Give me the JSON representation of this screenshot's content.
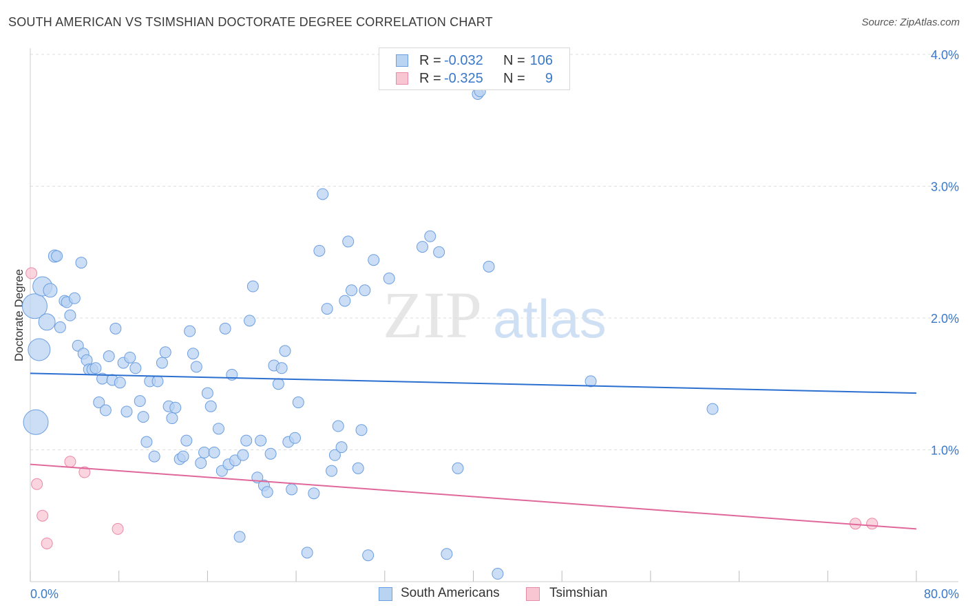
{
  "title": "SOUTH AMERICAN VS TSIMSHIAN DOCTORATE DEGREE CORRELATION CHART",
  "source": "Source: ZipAtlas.com",
  "watermark": {
    "zip": "ZIP",
    "atlas": "atlas"
  },
  "colors": {
    "blue_fill": "#b9d3f2",
    "blue_stroke": "#6b9ee0",
    "blue_line": "#2a6fd0",
    "pink_fill": "#f8c6d3",
    "pink_stroke": "#e98aa6",
    "pink_line": "#e0679a",
    "axis_text": "#3a78c9",
    "grid": "#dddddd"
  },
  "legend_top": {
    "rows": [
      {
        "r_label": "R =",
        "r_value": "-0.032",
        "n_label": "N =",
        "n_value": "106"
      },
      {
        "r_label": "R =",
        "r_value": "-0.325",
        "n_label": "N =",
        "n_value": "9"
      }
    ]
  },
  "legend_bottom": [
    "South Americans",
    "Tsimshian"
  ],
  "chart_data": {
    "type": "scatter",
    "ylabel": "Doctorate Degree",
    "xlabel": "",
    "xlim": [
      0,
      80
    ],
    "ylim": [
      0,
      4.0
    ],
    "x_tick_labels": [
      "0.0%",
      "80.0%"
    ],
    "y_tick_labels": [
      "1.0%",
      "2.0%",
      "3.0%",
      "4.0%"
    ],
    "y_ticks": [
      1.0,
      2.0,
      3.0,
      4.0
    ],
    "grid": true,
    "series": [
      {
        "name": "South Americans",
        "color": "#6b9ee0",
        "points": [
          [
            0.4,
            2.09,
            18
          ],
          [
            0.8,
            1.76,
            16
          ],
          [
            0.5,
            1.21,
            18
          ],
          [
            1.1,
            2.24,
            14
          ],
          [
            1.5,
            1.97,
            12
          ],
          [
            1.8,
            2.21,
            10
          ],
          [
            2.2,
            2.47,
            9
          ],
          [
            2.4,
            2.47,
            8
          ],
          [
            2.7,
            1.93,
            8
          ],
          [
            3.1,
            2.13,
            8
          ],
          [
            3.3,
            2.12,
            8
          ],
          [
            3.6,
            2.02,
            8
          ],
          [
            4.0,
            2.15,
            8
          ],
          [
            4.3,
            1.79,
            8
          ],
          [
            4.6,
            2.42,
            8
          ],
          [
            4.8,
            1.73,
            8
          ],
          [
            5.1,
            1.68,
            8
          ],
          [
            5.3,
            1.61,
            8
          ],
          [
            5.6,
            1.61,
            8
          ],
          [
            5.9,
            1.62,
            8
          ],
          [
            6.2,
            1.36,
            8
          ],
          [
            6.5,
            1.54,
            8
          ],
          [
            6.8,
            1.3,
            8
          ],
          [
            7.1,
            1.71,
            8
          ],
          [
            7.4,
            1.53,
            8
          ],
          [
            7.7,
            1.92,
            8
          ],
          [
            8.1,
            1.51,
            8
          ],
          [
            8.4,
            1.66,
            8
          ],
          [
            8.7,
            1.29,
            8
          ],
          [
            9.0,
            1.7,
            8
          ],
          [
            9.5,
            1.62,
            8
          ],
          [
            9.9,
            1.37,
            8
          ],
          [
            10.2,
            1.25,
            8
          ],
          [
            10.5,
            1.06,
            8
          ],
          [
            10.8,
            1.52,
            8
          ],
          [
            11.2,
            0.95,
            8
          ],
          [
            11.5,
            1.52,
            8
          ],
          [
            11.9,
            1.66,
            8
          ],
          [
            12.2,
            1.74,
            8
          ],
          [
            12.5,
            1.33,
            8
          ],
          [
            12.8,
            1.24,
            8
          ],
          [
            13.1,
            1.32,
            8
          ],
          [
            13.5,
            0.93,
            8
          ],
          [
            13.8,
            0.95,
            8
          ],
          [
            14.1,
            1.07,
            8
          ],
          [
            14.4,
            1.9,
            8
          ],
          [
            14.7,
            1.73,
            8
          ],
          [
            15.0,
            1.63,
            8
          ],
          [
            15.4,
            0.9,
            8
          ],
          [
            15.7,
            0.98,
            8
          ],
          [
            16.0,
            1.43,
            8
          ],
          [
            16.3,
            1.33,
            8
          ],
          [
            16.6,
            0.98,
            8
          ],
          [
            17.0,
            1.16,
            8
          ],
          [
            17.3,
            0.84,
            8
          ],
          [
            17.6,
            1.92,
            8
          ],
          [
            17.9,
            0.89,
            8
          ],
          [
            18.2,
            1.57,
            8
          ],
          [
            18.5,
            0.92,
            8
          ],
          [
            18.9,
            0.34,
            8
          ],
          [
            19.2,
            0.96,
            8
          ],
          [
            19.5,
            1.07,
            8
          ],
          [
            19.8,
            1.98,
            8
          ],
          [
            20.1,
            2.24,
            8
          ],
          [
            20.5,
            0.79,
            8
          ],
          [
            20.8,
            1.07,
            8
          ],
          [
            21.1,
            0.73,
            8
          ],
          [
            21.4,
            0.68,
            8
          ],
          [
            21.7,
            0.97,
            8
          ],
          [
            22.0,
            1.64,
            8
          ],
          [
            22.4,
            1.5,
            8
          ],
          [
            22.7,
            1.62,
            8
          ],
          [
            23.0,
            1.75,
            8
          ],
          [
            23.3,
            1.06,
            8
          ],
          [
            23.6,
            0.7,
            8
          ],
          [
            23.9,
            1.09,
            8
          ],
          [
            24.2,
            1.36,
            8
          ],
          [
            25.0,
            0.22,
            8
          ],
          [
            25.6,
            0.67,
            8
          ],
          [
            26.1,
            2.51,
            8
          ],
          [
            26.4,
            2.94,
            8
          ],
          [
            26.8,
            2.07,
            8
          ],
          [
            27.2,
            0.84,
            8
          ],
          [
            27.5,
            0.96,
            8
          ],
          [
            27.8,
            1.18,
            8
          ],
          [
            28.1,
            1.02,
            8
          ],
          [
            28.4,
            2.13,
            8
          ],
          [
            28.7,
            2.58,
            8
          ],
          [
            29.0,
            2.21,
            8
          ],
          [
            29.6,
            0.86,
            8
          ],
          [
            29.9,
            1.15,
            8
          ],
          [
            30.2,
            2.21,
            8
          ],
          [
            30.5,
            0.2,
            8
          ],
          [
            31.0,
            2.44,
            8
          ],
          [
            32.4,
            2.3,
            8
          ],
          [
            35.4,
            2.54,
            8
          ],
          [
            36.1,
            2.62,
            8
          ],
          [
            36.9,
            2.5,
            8
          ],
          [
            37.6,
            0.21,
            8
          ],
          [
            38.6,
            0.86,
            8
          ],
          [
            40.4,
            3.7,
            8
          ],
          [
            40.6,
            3.72,
            8
          ],
          [
            41.4,
            2.39,
            8
          ],
          [
            42.2,
            0.06,
            8
          ],
          [
            50.6,
            1.52,
            8
          ],
          [
            61.6,
            1.31,
            8
          ]
        ],
        "trend": [
          [
            0,
            1.58
          ],
          [
            80,
            1.43
          ]
        ]
      },
      {
        "name": "Tsimshian",
        "color": "#e98aa6",
        "points": [
          [
            0.1,
            2.34,
            8
          ],
          [
            0.6,
            0.74,
            8
          ],
          [
            1.1,
            0.5,
            8
          ],
          [
            1.5,
            0.29,
            8
          ],
          [
            3.6,
            0.91,
            8
          ],
          [
            4.9,
            0.83,
            8
          ],
          [
            7.9,
            0.4,
            8
          ],
          [
            74.5,
            0.44,
            8
          ],
          [
            76.0,
            0.44,
            8
          ]
        ],
        "trend": [
          [
            0,
            0.89
          ],
          [
            80,
            0.4
          ]
        ]
      }
    ]
  }
}
